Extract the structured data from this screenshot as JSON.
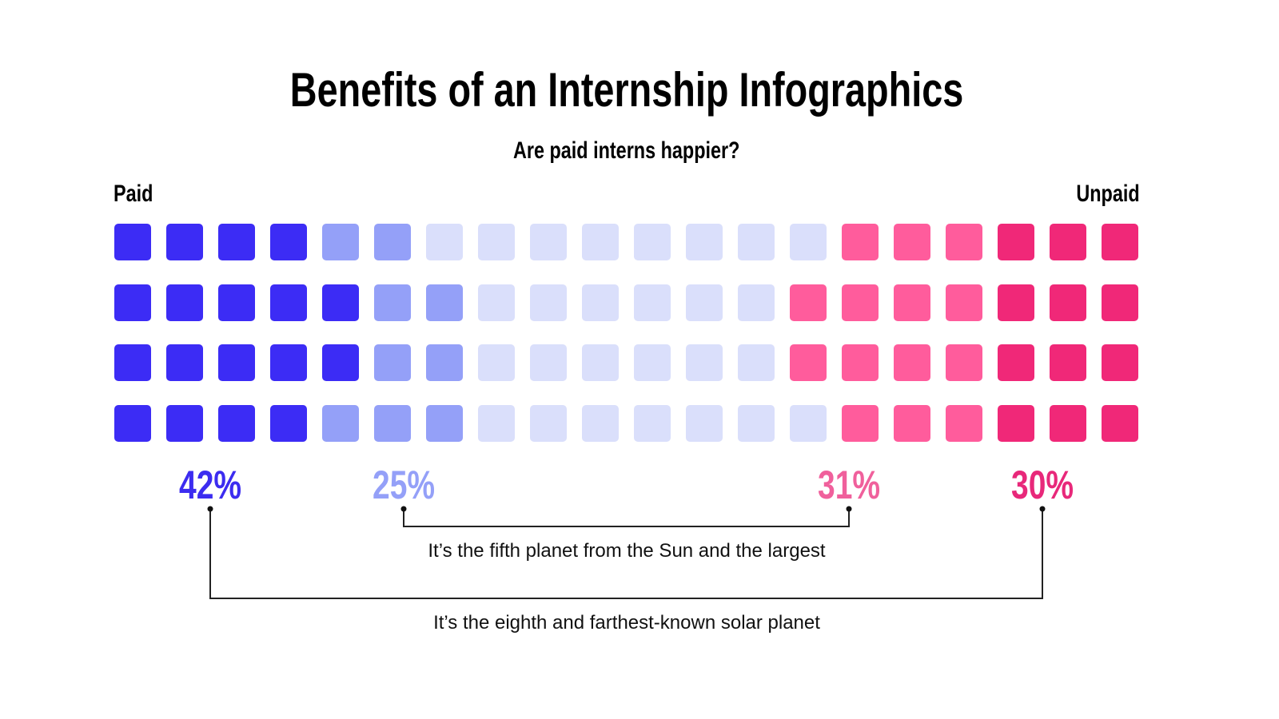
{
  "title": "Benefits of an Internship Infographics",
  "subtitle": "Are paid interns happier?",
  "left_label": "Paid",
  "right_label": "Unpaid",
  "chart_data": {
    "type": "waffle",
    "title": "Benefits of an Internship Infographics",
    "subtitle": "Are paid interns happier?",
    "categories": [
      {
        "value": "42%",
        "color": "#3c2cf5"
      },
      {
        "value": "25%",
        "color": "#94a0f8"
      },
      {
        "value": "",
        "color": "#dadffb"
      },
      {
        "value": "31%",
        "color": "#ff5c9c"
      },
      {
        "value": "30%",
        "color": "#f02878"
      }
    ],
    "grid_rows": [
      [
        0,
        0,
        0,
        0,
        1,
        1,
        2,
        2,
        2,
        2,
        2,
        2,
        2,
        2,
        3,
        3,
        3,
        4,
        4,
        4
      ],
      [
        0,
        0,
        0,
        0,
        0,
        1,
        1,
        2,
        2,
        2,
        2,
        2,
        2,
        3,
        3,
        3,
        3,
        4,
        4,
        4
      ],
      [
        0,
        0,
        0,
        0,
        0,
        1,
        1,
        2,
        2,
        2,
        2,
        2,
        2,
        3,
        3,
        3,
        3,
        4,
        4,
        4
      ],
      [
        0,
        0,
        0,
        0,
        1,
        1,
        1,
        2,
        2,
        2,
        2,
        2,
        2,
        2,
        3,
        3,
        3,
        4,
        4,
        4
      ]
    ],
    "label_colors": [
      "#3c2cf0",
      "#94a0f8",
      "#f0609c",
      "#e8287a"
    ]
  },
  "notes": {
    "inner": "It’s the fifth planet from the Sun and the largest",
    "outer": "It’s the eighth and farthest-known solar planet"
  }
}
